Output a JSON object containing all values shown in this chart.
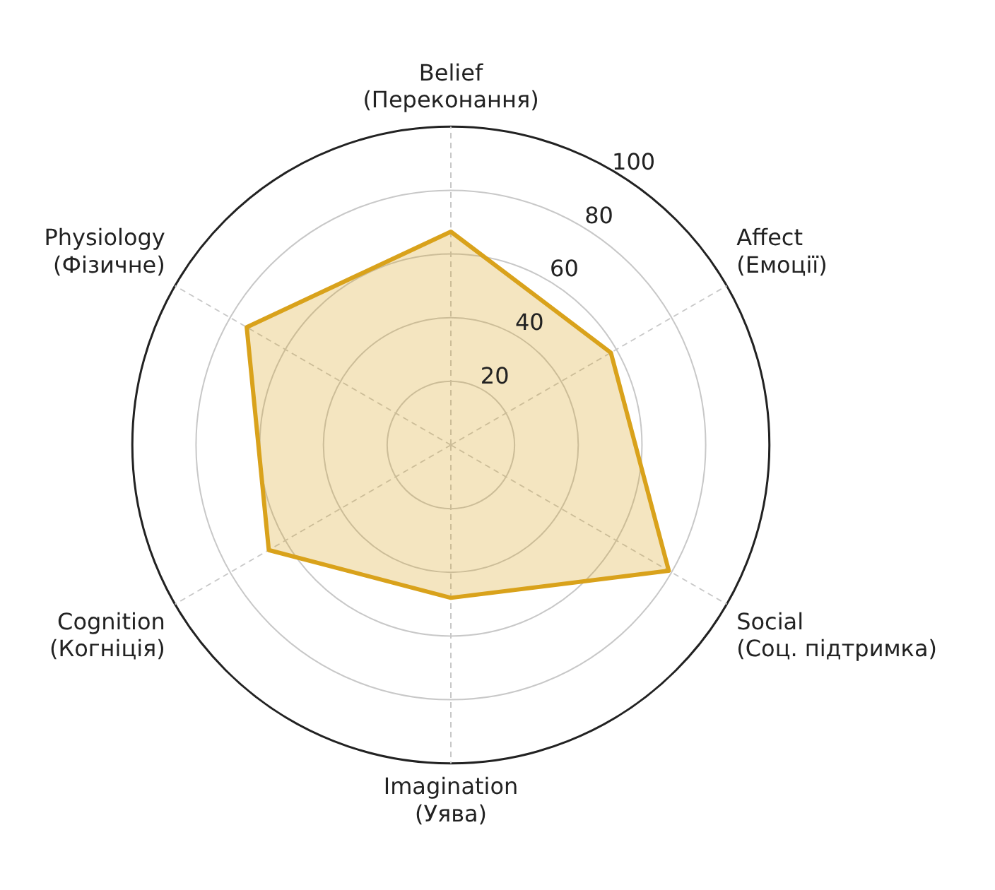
{
  "chart_data": {
    "type": "radar",
    "categories": [
      "Belief\n(Переконання)",
      "Affect\n(Емоції)",
      "Social\n(Соц. підтримка)",
      "Imagination\n(Уява)",
      "Cognition\n(Когніція)",
      "Physiology\n(Фізичне)"
    ],
    "series": [
      {
        "color": "#d9a21b",
        "values": [
          67,
          58,
          79,
          48,
          66,
          74
        ]
      }
    ],
    "ylim": [
      0,
      100
    ],
    "yticks": [
      20,
      40,
      60,
      80,
      100
    ],
    "grid": true,
    "marker": "none",
    "legend": false
  }
}
